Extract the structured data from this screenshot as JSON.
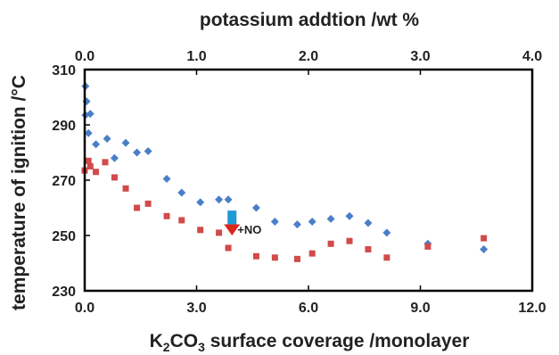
{
  "chart_data": {
    "type": "scatter",
    "title": "",
    "xlabel_bottom_parts": [
      "K",
      "2",
      "CO",
      "3",
      " surface coverage /monolayer"
    ],
    "xlabel_top": "potassium addtion /wt %",
    "ylabel": "temperature of ignition /°C",
    "xlim_bottom": [
      0,
      12
    ],
    "xlim_top": [
      0,
      4
    ],
    "ylim": [
      230,
      310
    ],
    "xticks_bottom": [
      "0.0",
      "3.0",
      "6.0",
      "9.0",
      "12.0"
    ],
    "xticks_top": [
      "0.0",
      "1.0",
      "2.0",
      "3.0",
      "4.0"
    ],
    "yticks": [
      "230",
      "250",
      "270",
      "290",
      "310"
    ],
    "grid": false,
    "series": [
      {
        "color": "#4a7fc8",
        "marker": "diamond",
        "points": [
          [
            0.02,
            304
          ],
          [
            0.05,
            298.5
          ],
          [
            0.02,
            293.5
          ],
          [
            0.15,
            294
          ],
          [
            0.1,
            287
          ],
          [
            0.3,
            283
          ],
          [
            0.6,
            285
          ],
          [
            0.8,
            278
          ],
          [
            1.1,
            283.5
          ],
          [
            1.4,
            280
          ],
          [
            1.7,
            280.5
          ],
          [
            2.2,
            270.5
          ],
          [
            2.6,
            265.5
          ],
          [
            3.1,
            262
          ],
          [
            3.6,
            263
          ],
          [
            3.85,
            263
          ],
          [
            4.6,
            260
          ],
          [
            5.1,
            255
          ],
          [
            5.7,
            254
          ],
          [
            6.1,
            255
          ],
          [
            6.6,
            256
          ],
          [
            7.1,
            257
          ],
          [
            7.6,
            254.5
          ],
          [
            8.1,
            251
          ],
          [
            9.2,
            247
          ],
          [
            10.7,
            245
          ]
        ]
      },
      {
        "color": "#d24a4a",
        "marker": "square",
        "points": [
          [
            0.0,
            273.5
          ],
          [
            0.1,
            277
          ],
          [
            0.15,
            275
          ],
          [
            0.3,
            273
          ],
          [
            0.55,
            276.5
          ],
          [
            0.8,
            271
          ],
          [
            1.1,
            267
          ],
          [
            1.4,
            260
          ],
          [
            1.7,
            261.5
          ],
          [
            2.2,
            257
          ],
          [
            2.6,
            255.5
          ],
          [
            3.1,
            252
          ],
          [
            3.6,
            251
          ],
          [
            3.85,
            245.5
          ],
          [
            4.6,
            242.5
          ],
          [
            5.1,
            242
          ],
          [
            5.7,
            241.5
          ],
          [
            6.1,
            243.5
          ],
          [
            6.6,
            247
          ],
          [
            7.1,
            248
          ],
          [
            7.6,
            245
          ],
          [
            8.1,
            242
          ],
          [
            9.2,
            246
          ],
          [
            10.7,
            249
          ]
        ]
      }
    ],
    "annotations": [
      {
        "text": "+NO",
        "x": 3.95,
        "y": 252
      },
      {
        "shape": "arrow-down",
        "x": 3.95,
        "y_from": 259,
        "y_to": 250,
        "color_top": "#1e9ad6",
        "color_bottom": "#d9261c"
      }
    ]
  }
}
